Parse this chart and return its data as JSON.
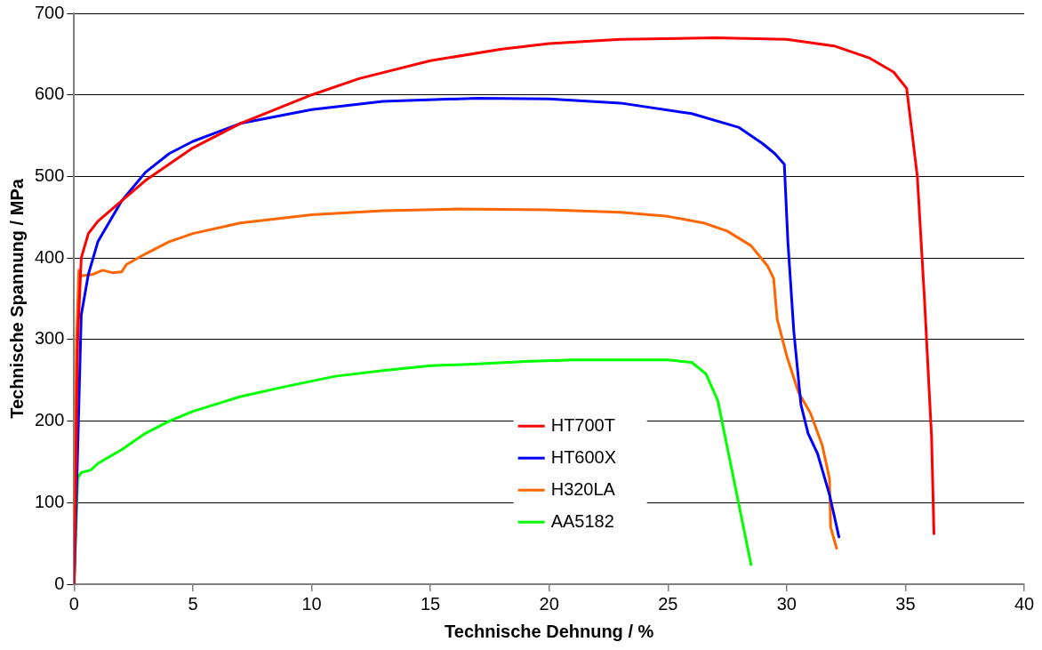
{
  "chart_data": {
    "type": "line",
    "xlabel": "Technische Dehnung / %",
    "ylabel": "Technische Spannung / MPa",
    "xlim": [
      0,
      40
    ],
    "xticks": [
      0,
      5,
      10,
      15,
      20,
      25,
      30,
      35,
      40
    ],
    "ylim": [
      0,
      700
    ],
    "yticks": [
      0,
      100,
      200,
      300,
      400,
      500,
      600,
      700
    ],
    "grid": "y",
    "legend": "bottom center",
    "marker": "none",
    "line_style": "solid",
    "series": [
      {
        "name": "HT700T",
        "color": "#ff0000",
        "x": [
          0,
          0.15,
          0.3,
          0.6,
          1,
          2,
          3,
          5,
          7,
          10,
          12,
          15,
          18,
          20,
          23,
          27,
          30,
          32,
          33.5,
          34.5,
          35.05,
          35.5,
          35.8,
          36.1,
          36.2
        ],
        "values": [
          0,
          300,
          400,
          430,
          445,
          470,
          495,
          535,
          565,
          600,
          620,
          642,
          656,
          663,
          668,
          670,
          668,
          660,
          645,
          628,
          608,
          500,
          350,
          180,
          62
        ]
      },
      {
        "name": "HT600X",
        "color": "#0000ff",
        "x": [
          0,
          0.3,
          0.6,
          1,
          2,
          3,
          4,
          5,
          7,
          10,
          13,
          17,
          20,
          23,
          26,
          28,
          29,
          29.5,
          29.9,
          30.05,
          30.3,
          30.6,
          30.9,
          31.3,
          31.8,
          32.2
        ],
        "values": [
          0,
          330,
          380,
          420,
          470,
          505,
          528,
          543,
          565,
          582,
          592,
          596,
          595,
          590,
          577,
          560,
          540,
          528,
          515,
          420,
          310,
          220,
          185,
          160,
          110,
          58
        ]
      },
      {
        "name": "H320LA",
        "color": "#ff6600",
        "x": [
          0,
          0.1,
          0.2,
          0.3,
          0.8,
          1.2,
          1.6,
          2,
          2.2,
          3,
          4,
          5,
          7,
          10,
          13,
          16,
          20,
          23,
          25,
          26.5,
          27.5,
          28.5,
          29.2,
          29.45,
          29.6,
          30,
          30.5,
          31,
          31.5,
          31.8,
          31.85,
          32.1
        ],
        "values": [
          0,
          300,
          385,
          378,
          380,
          385,
          382,
          383,
          392,
          405,
          420,
          430,
          443,
          453,
          458,
          460,
          459,
          456,
          451,
          443,
          433,
          415,
          390,
          375,
          325,
          280,
          235,
          210,
          170,
          130,
          70,
          44
        ]
      },
      {
        "name": "AA5182",
        "color": "#00ff00",
        "x": [
          0,
          0.15,
          0.3,
          0.7,
          1,
          2,
          3,
          4,
          5,
          7,
          9,
          11,
          13,
          15,
          17,
          19,
          21,
          23,
          25,
          26,
          26.6,
          27.1,
          28.5
        ],
        "values": [
          0,
          130,
          137,
          140,
          148,
          165,
          185,
          200,
          212,
          230,
          243,
          255,
          262,
          268,
          270,
          273,
          275,
          275,
          275,
          272,
          258,
          225,
          24
        ]
      }
    ]
  }
}
